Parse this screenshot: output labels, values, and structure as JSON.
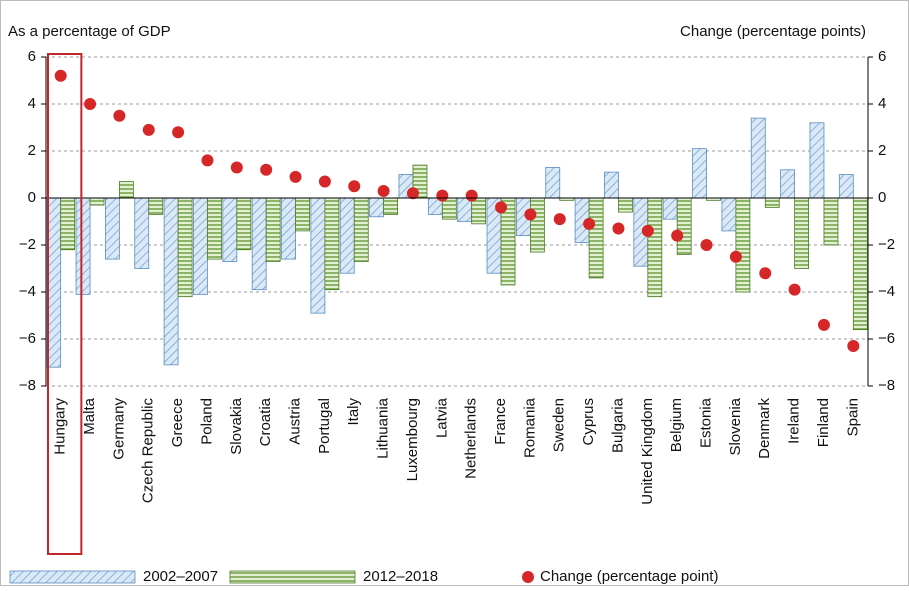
{
  "chart_data": {
    "type": "bar",
    "y_label": "As a percentage of GDP",
    "y2_label": "Change (percentage points)",
    "categories": [
      "Hungary",
      "Malta",
      "Germany",
      "Czech Republic",
      "Greece",
      "Poland",
      "Slovakia",
      "Croatia",
      "Austria",
      "Portugal",
      "Italy",
      "Lithuania",
      "Luxembourg",
      "Latvia",
      "Netherlands",
      "France",
      "Romania",
      "Sweden",
      "Cyprus",
      "Bulgaria",
      "United Kingdom",
      "Belgium",
      "Estonia",
      "Slovenia",
      "Denmark",
      "Ireland",
      "Finland",
      "Spain"
    ],
    "series": [
      {
        "name": "2002–2007",
        "color": "#9dc3e6",
        "values": [
          -7.2,
          -4.1,
          -2.6,
          -3.0,
          -7.1,
          -4.1,
          -2.7,
          -3.9,
          -2.6,
          -4.9,
          -3.2,
          -0.8,
          1.0,
          -0.7,
          -1.0,
          -3.2,
          -1.6,
          1.3,
          -1.9,
          1.1,
          -2.9,
          -0.9,
          2.1,
          -1.4,
          3.4,
          1.2,
          3.2,
          1.0
        ]
      },
      {
        "name": "2012–2018",
        "color": "#a9d18e",
        "values": [
          -2.2,
          -0.3,
          0.7,
          -0.7,
          -4.2,
          -2.6,
          -2.2,
          -2.7,
          -1.4,
          -3.9,
          -2.7,
          -0.7,
          1.4,
          -0.9,
          -1.1,
          -3.7,
          -2.3,
          -0.1,
          -3.4,
          -0.6,
          -4.2,
          -2.4,
          -0.1,
          -4.0,
          -0.4,
          -3.0,
          -2.0,
          -5.6
        ]
      },
      {
        "name": "Change (percentage point)",
        "color": "#d62728",
        "axis": "y2",
        "values": [
          5.2,
          4.0,
          3.5,
          2.9,
          2.8,
          1.6,
          1.3,
          1.2,
          0.9,
          0.7,
          0.5,
          0.3,
          0.2,
          0.1,
          0.1,
          -0.4,
          -0.7,
          -0.9,
          -1.1,
          -1.3,
          -1.4,
          -1.6,
          -2.0,
          -2.5,
          -3.2,
          -3.9,
          -5.4,
          -6.3
        ]
      }
    ],
    "ylim": [
      -8,
      6
    ],
    "yticks": [
      {
        "value": -8,
        "label": "−8"
      },
      {
        "value": -6,
        "label": "−6"
      },
      {
        "value": -4,
        "label": "−4"
      },
      {
        "value": -2,
        "label": "−2"
      },
      0,
      2,
      4,
      6
    ],
    "y2lim": [
      -8,
      6
    ],
    "y2ticks": [
      {
        "value": -8,
        "label": "−8"
      },
      {
        "value": -6,
        "label": "−6"
      },
      {
        "value": -4,
        "label": "−4"
      },
      {
        "value": -2,
        "label": "−2"
      },
      0,
      2,
      4,
      6
    ],
    "grid": true
  }
}
